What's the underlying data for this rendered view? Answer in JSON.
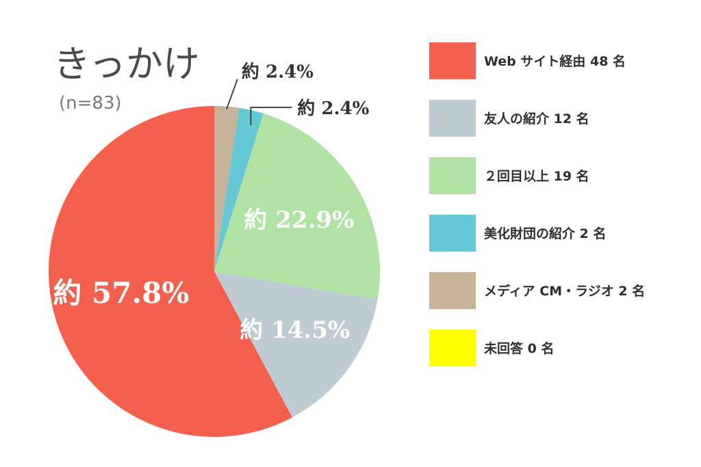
{
  "chart_data": {
    "type": "pie",
    "title": "きっかけ",
    "subtitle": "(n=83)",
    "start_angle_deg": -90,
    "direction": "clockwise",
    "slices": [
      {
        "label": "約 2.4%",
        "value": 2.4,
        "color": "#c9b29a",
        "legend": "メディア CM・ラジオ 2 名"
      },
      {
        "label": "約 2.4%",
        "value": 2.4,
        "color": "#66c8d4",
        "legend": "美化財団の紹介 2 名"
      },
      {
        "label": "約 22.9%",
        "value": 22.9,
        "color": "#b0e2a4",
        "legend": "２回目以上 19 名"
      },
      {
        "label": "約 14.5%",
        "value": 14.5,
        "color": "#bfcbd3",
        "legend": "友人の紹介 12 名"
      },
      {
        "label": "約 57.8%",
        "value": 57.8,
        "color": "#f55f4e",
        "legend": "Web サイト経由 48 名"
      }
    ],
    "legend_order": [
      {
        "text": "Web サイト経由 48 名",
        "color": "#f55f4e"
      },
      {
        "text": "友人の紹介 12 名",
        "color": "#bfcbd3"
      },
      {
        "text": "２回目以上 19 名",
        "color": "#b0e2a4"
      },
      {
        "text": "美化財団の紹介 2 名",
        "color": "#66c8d4"
      },
      {
        "text": "メディア CM・ラジオ 2 名",
        "color": "#c9b29a"
      },
      {
        "text": "未回答 0 名",
        "color": "#ffff00"
      }
    ],
    "legend_placement": "right"
  }
}
